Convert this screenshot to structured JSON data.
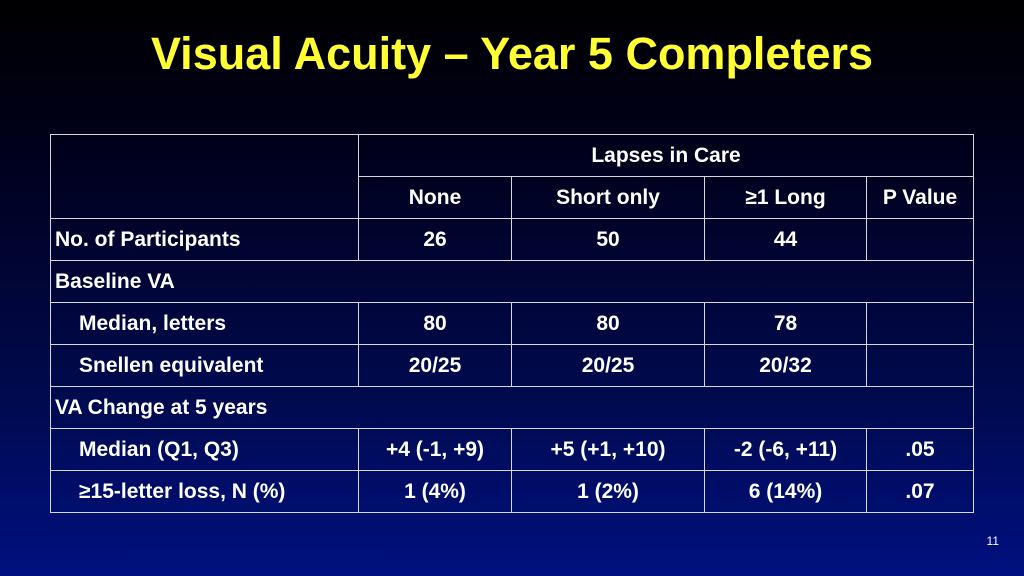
{
  "slide": {
    "title": "Visual Acuity – Year 5 Completers",
    "page_number": "11"
  },
  "table": {
    "group_header": "Lapses in Care",
    "columns": [
      "None",
      "Short only",
      "≥1 Long",
      "P Value"
    ],
    "rows": {
      "participants": {
        "label": "No. of Participants",
        "values": [
          "26",
          "50",
          "44",
          ""
        ]
      },
      "baseline_section": "Baseline VA",
      "median_letters": {
        "label": "Median, letters",
        "values": [
          "80",
          "80",
          "78",
          ""
        ]
      },
      "snellen": {
        "label": "Snellen equivalent",
        "values": [
          "20/25",
          "20/25",
          "20/32",
          ""
        ]
      },
      "change_section": "VA Change at 5 years",
      "median_q": {
        "label": "Median (Q1, Q3)",
        "values": [
          "+4 (-1, +9)",
          "+5 (+1, +10)",
          "-2 (-6, +11)",
          ".05"
        ]
      },
      "letter_loss": {
        "label": "≥15-letter loss, N (%)",
        "values": [
          "1 (4%)",
          "1 (2%)",
          "6 (14%)",
          ".07"
        ]
      }
    }
  },
  "colors": {
    "title": "#ffff33",
    "text": "#ffffff",
    "background_top": "#000000",
    "background_bottom": "#001080",
    "grid": "#d8d8d8"
  }
}
